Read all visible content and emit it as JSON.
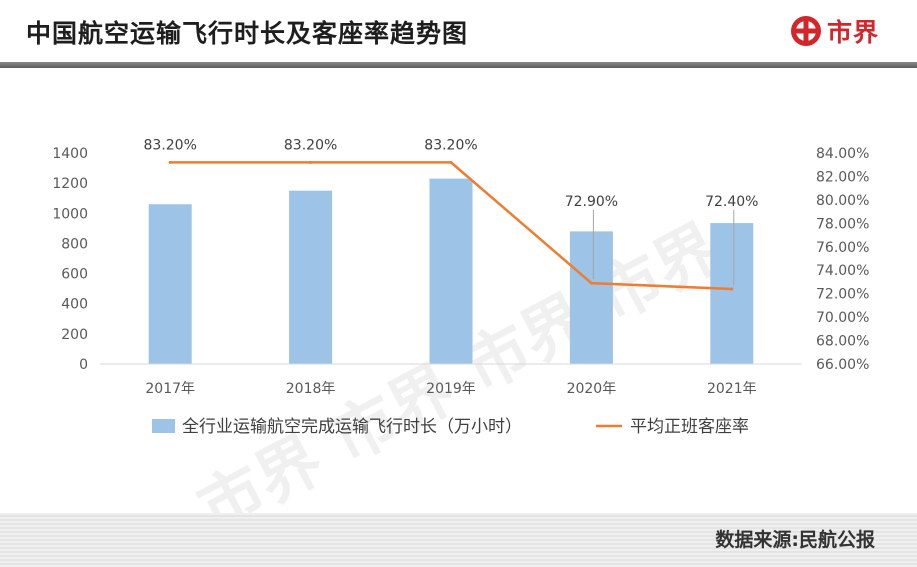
{
  "header": {
    "title": "中国航空运输飞行时长及客座率趋势图",
    "brand": "市界"
  },
  "footer": {
    "source": "数据来源:民航公报"
  },
  "colors": {
    "bar": "#9dc3e6",
    "line": "#ed7d31",
    "brand": "#d3262a"
  },
  "watermark": "市界",
  "chart_data": {
    "type": "bar",
    "categories": [
      "2017年",
      "2018年",
      "2019年",
      "2020年",
      "2021年"
    ],
    "series": [
      {
        "name": "全行业运输航空完成运输飞行时长（万小时）",
        "type": "bar",
        "axis": "left",
        "values": [
          1060,
          1150,
          1230,
          880,
          935
        ]
      },
      {
        "name": "平均正班客座率",
        "type": "line",
        "axis": "right",
        "values": [
          83.2,
          83.2,
          83.2,
          72.9,
          72.4
        ],
        "labels": [
          "83.20%",
          "83.20%",
          "83.20%",
          "72.90%",
          "72.40%"
        ]
      }
    ],
    "y_left": {
      "min": 0,
      "max": 1400,
      "ticks": [
        "0",
        "200",
        "400",
        "600",
        "800",
        "1000",
        "1200",
        "1400"
      ]
    },
    "y_right": {
      "min": 66,
      "max": 84,
      "ticks": [
        "66.00%",
        "68.00%",
        "70.00%",
        "72.00%",
        "74.00%",
        "76.00%",
        "78.00%",
        "80.00%",
        "82.00%",
        "84.00%"
      ]
    },
    "legend_position": "bottom",
    "grid": false
  }
}
